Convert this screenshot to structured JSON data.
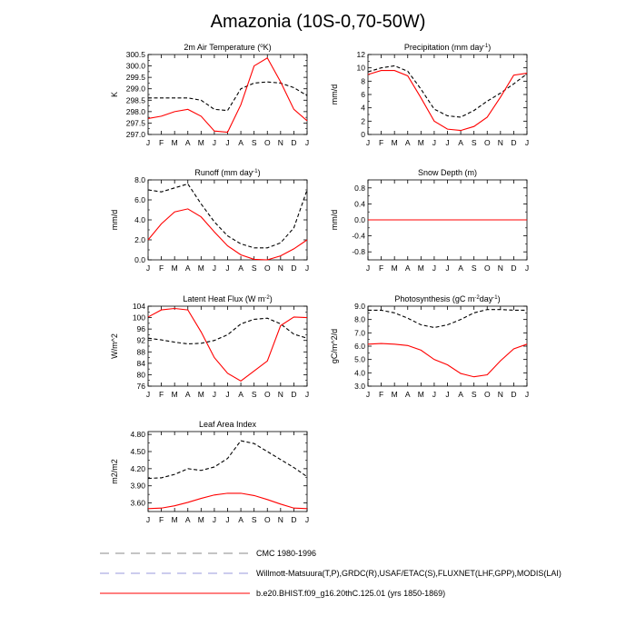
{
  "figure_title": "Amazonia (10S-0,70-50W)",
  "months": [
    "J",
    "F",
    "M",
    "A",
    "M",
    "J",
    "J",
    "A",
    "S",
    "O",
    "N",
    "D",
    "J"
  ],
  "legend": [
    {
      "label": "CMC 1980-1996",
      "color": "#888888",
      "style": "dashed"
    },
    {
      "label": "Willmott-Matsuura(T,P),GRDC(R),USAF/ETAC(S),FLUXNET(LHF,GPP),MODIS(LAI)",
      "color": "#9999dd",
      "style": "dashed"
    },
    {
      "label": "b.e20.BHIST.f09_g16.20thC.125.01 (yrs 1850-1869)",
      "color": "#ff0000",
      "style": "solid"
    }
  ],
  "chart_data": [
    {
      "type": "line",
      "title_parts": [
        "2m Air Temperature (",
        "o",
        "K)"
      ],
      "ylabel": "K",
      "ylim": [
        297.0,
        300.5
      ],
      "yticks": [
        297.0,
        297.5,
        298.0,
        298.5,
        299.0,
        299.5,
        300.0,
        300.5
      ],
      "ytick_decimals": 1,
      "series": [
        {
          "name": "obs",
          "style": "dashed",
          "color": "#000000",
          "values": [
            298.6,
            298.6,
            298.6,
            298.6,
            298.5,
            298.1,
            298.05,
            299.0,
            299.25,
            299.3,
            299.25,
            299.05,
            298.7
          ]
        },
        {
          "name": "model",
          "style": "solid",
          "color": "#ff0000",
          "values": [
            297.7,
            297.8,
            298.0,
            298.1,
            297.8,
            297.15,
            297.1,
            298.3,
            300.0,
            300.35,
            299.3,
            298.1,
            297.6
          ]
        }
      ]
    },
    {
      "type": "line",
      "title_parts": [
        "Precipitation (mm day",
        "-1",
        ")"
      ],
      "ylabel": "mm/d",
      "ylim": [
        0,
        12
      ],
      "yticks": [
        0,
        2,
        4,
        6,
        8,
        10,
        12
      ],
      "ytick_decimals": 0,
      "series": [
        {
          "name": "obs",
          "style": "dashed",
          "color": "#000000",
          "values": [
            9.4,
            10.0,
            10.3,
            9.5,
            6.8,
            3.8,
            2.8,
            2.6,
            3.6,
            5.0,
            6.2,
            7.6,
            9.1
          ]
        },
        {
          "name": "model",
          "style": "solid",
          "color": "#ff0000",
          "values": [
            9.0,
            9.6,
            9.6,
            8.8,
            5.5,
            2.0,
            0.8,
            0.6,
            1.2,
            2.6,
            5.6,
            8.9,
            9.2
          ]
        }
      ]
    },
    {
      "type": "line",
      "title_parts": [
        "Runoff (mm day",
        "-1",
        ")"
      ],
      "ylabel": "mm/d",
      "ylim": [
        0,
        8
      ],
      "yticks": [
        0.0,
        2.0,
        4.0,
        6.0,
        8.0
      ],
      "ytick_decimals": 1,
      "series": [
        {
          "name": "obs",
          "style": "dashed",
          "color": "#000000",
          "values": [
            7.0,
            6.8,
            7.2,
            7.6,
            5.6,
            3.8,
            2.4,
            1.6,
            1.2,
            1.2,
            1.7,
            3.2,
            7.0
          ]
        },
        {
          "name": "model",
          "style": "solid",
          "color": "#ff0000",
          "values": [
            2.0,
            3.6,
            4.8,
            5.1,
            4.3,
            2.8,
            1.4,
            0.5,
            0.05,
            0.0,
            0.4,
            1.1,
            2.0
          ]
        }
      ]
    },
    {
      "type": "line",
      "title_parts": [
        "Snow Depth (m)"
      ],
      "ylabel": "mm/d",
      "ylim": [
        -1.0,
        1.0
      ],
      "yticks": [
        -0.8,
        -0.4,
        0.0,
        0.4,
        0.8
      ],
      "ytick_decimals": 1,
      "series": [
        {
          "name": "obs",
          "style": "dashed",
          "color": "#000000",
          "values": [
            0,
            0,
            0,
            0,
            0,
            0,
            0,
            0,
            0,
            0,
            0,
            0,
            0
          ]
        },
        {
          "name": "model",
          "style": "solid",
          "color": "#ff0000",
          "values": [
            0,
            0,
            0,
            0,
            0,
            0,
            0,
            0,
            0,
            0,
            0,
            0,
            0
          ]
        }
      ]
    },
    {
      "type": "line",
      "title_parts": [
        "Latent Heat Flux (W m",
        "-2",
        ")"
      ],
      "ylabel": "W/m^2",
      "ylim": [
        76,
        104
      ],
      "yticks": [
        76,
        80,
        84,
        88,
        92,
        96,
        100,
        104
      ],
      "ytick_decimals": 0,
      "series": [
        {
          "name": "obs",
          "style": "dashed",
          "color": "#000000",
          "values": [
            92.8,
            92.2,
            91.4,
            90.8,
            91.0,
            92.0,
            94.0,
            97.8,
            99.4,
            99.8,
            97.8,
            94.2,
            92.8
          ]
        },
        {
          "name": "model",
          "style": "solid",
          "color": "#ff0000",
          "values": [
            100.2,
            102.7,
            103.2,
            102.7,
            95.0,
            86.0,
            80.5,
            77.8,
            81.3,
            84.8,
            97.2,
            100.2,
            100.0
          ]
        }
      ]
    },
    {
      "type": "line",
      "title_parts": [
        "Photosynthesis (gC m",
        "-2",
        "day",
        "-1",
        ")"
      ],
      "ylabel": "gC/m^2/d",
      "ylim": [
        3.0,
        9.0
      ],
      "yticks": [
        3.0,
        4.0,
        5.0,
        6.0,
        7.0,
        8.0,
        9.0
      ],
      "ytick_decimals": 1,
      "series": [
        {
          "name": "obs",
          "style": "dashed",
          "color": "#000000",
          "values": [
            8.7,
            8.7,
            8.5,
            8.1,
            7.6,
            7.4,
            7.6,
            8.0,
            8.5,
            8.75,
            8.75,
            8.7,
            8.7
          ]
        },
        {
          "name": "model",
          "style": "solid",
          "color": "#ff0000",
          "values": [
            6.15,
            6.2,
            6.15,
            6.05,
            5.7,
            5.0,
            4.6,
            3.95,
            3.7,
            3.85,
            4.9,
            5.8,
            6.15
          ]
        }
      ]
    },
    {
      "type": "line",
      "title_parts": [
        "Leaf Area Index"
      ],
      "ylabel": "m2/m2",
      "ylim": [
        3.45,
        4.85
      ],
      "yticks": [
        3.6,
        3.9,
        4.2,
        4.5,
        4.8
      ],
      "ytick_decimals": 2,
      "series": [
        {
          "name": "obs",
          "style": "dashed",
          "color": "#000000",
          "values": [
            4.03,
            4.04,
            4.1,
            4.2,
            4.17,
            4.23,
            4.38,
            4.69,
            4.64,
            4.5,
            4.36,
            4.22,
            4.06
          ]
        },
        {
          "name": "model",
          "style": "solid",
          "color": "#ff0000",
          "values": [
            3.5,
            3.51,
            3.55,
            3.61,
            3.68,
            3.74,
            3.77,
            3.77,
            3.73,
            3.66,
            3.58,
            3.51,
            3.5
          ]
        }
      ]
    }
  ]
}
